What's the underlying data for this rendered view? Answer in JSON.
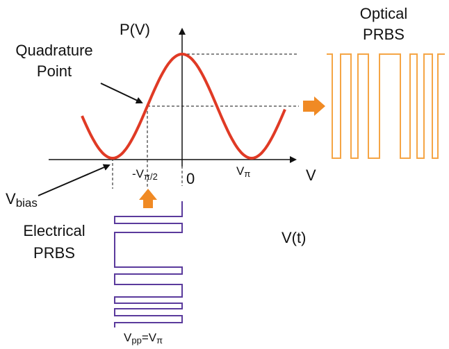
{
  "axes": {
    "y_label": "P(V)",
    "x_label": "V",
    "origin": "0"
  },
  "labels": {
    "quadrature_point": [
      "Quadrature",
      "Point"
    ],
    "optical_prbs": [
      "Optical",
      "PRBS"
    ],
    "electrical_prbs": [
      "Electrical",
      "PRBS"
    ],
    "v_t": "V(t)"
  },
  "ticks": {
    "v_pi": {
      "base": "V",
      "sub": "π"
    },
    "neg_half_v_pi": {
      "base": "-V",
      "sub": "π/2"
    }
  },
  "v_bias": {
    "base": "V",
    "sub": "bias"
  },
  "v_pp": {
    "base": "V",
    "sub": "pp",
    "eq": "=V",
    "sub2": "π"
  }
}
